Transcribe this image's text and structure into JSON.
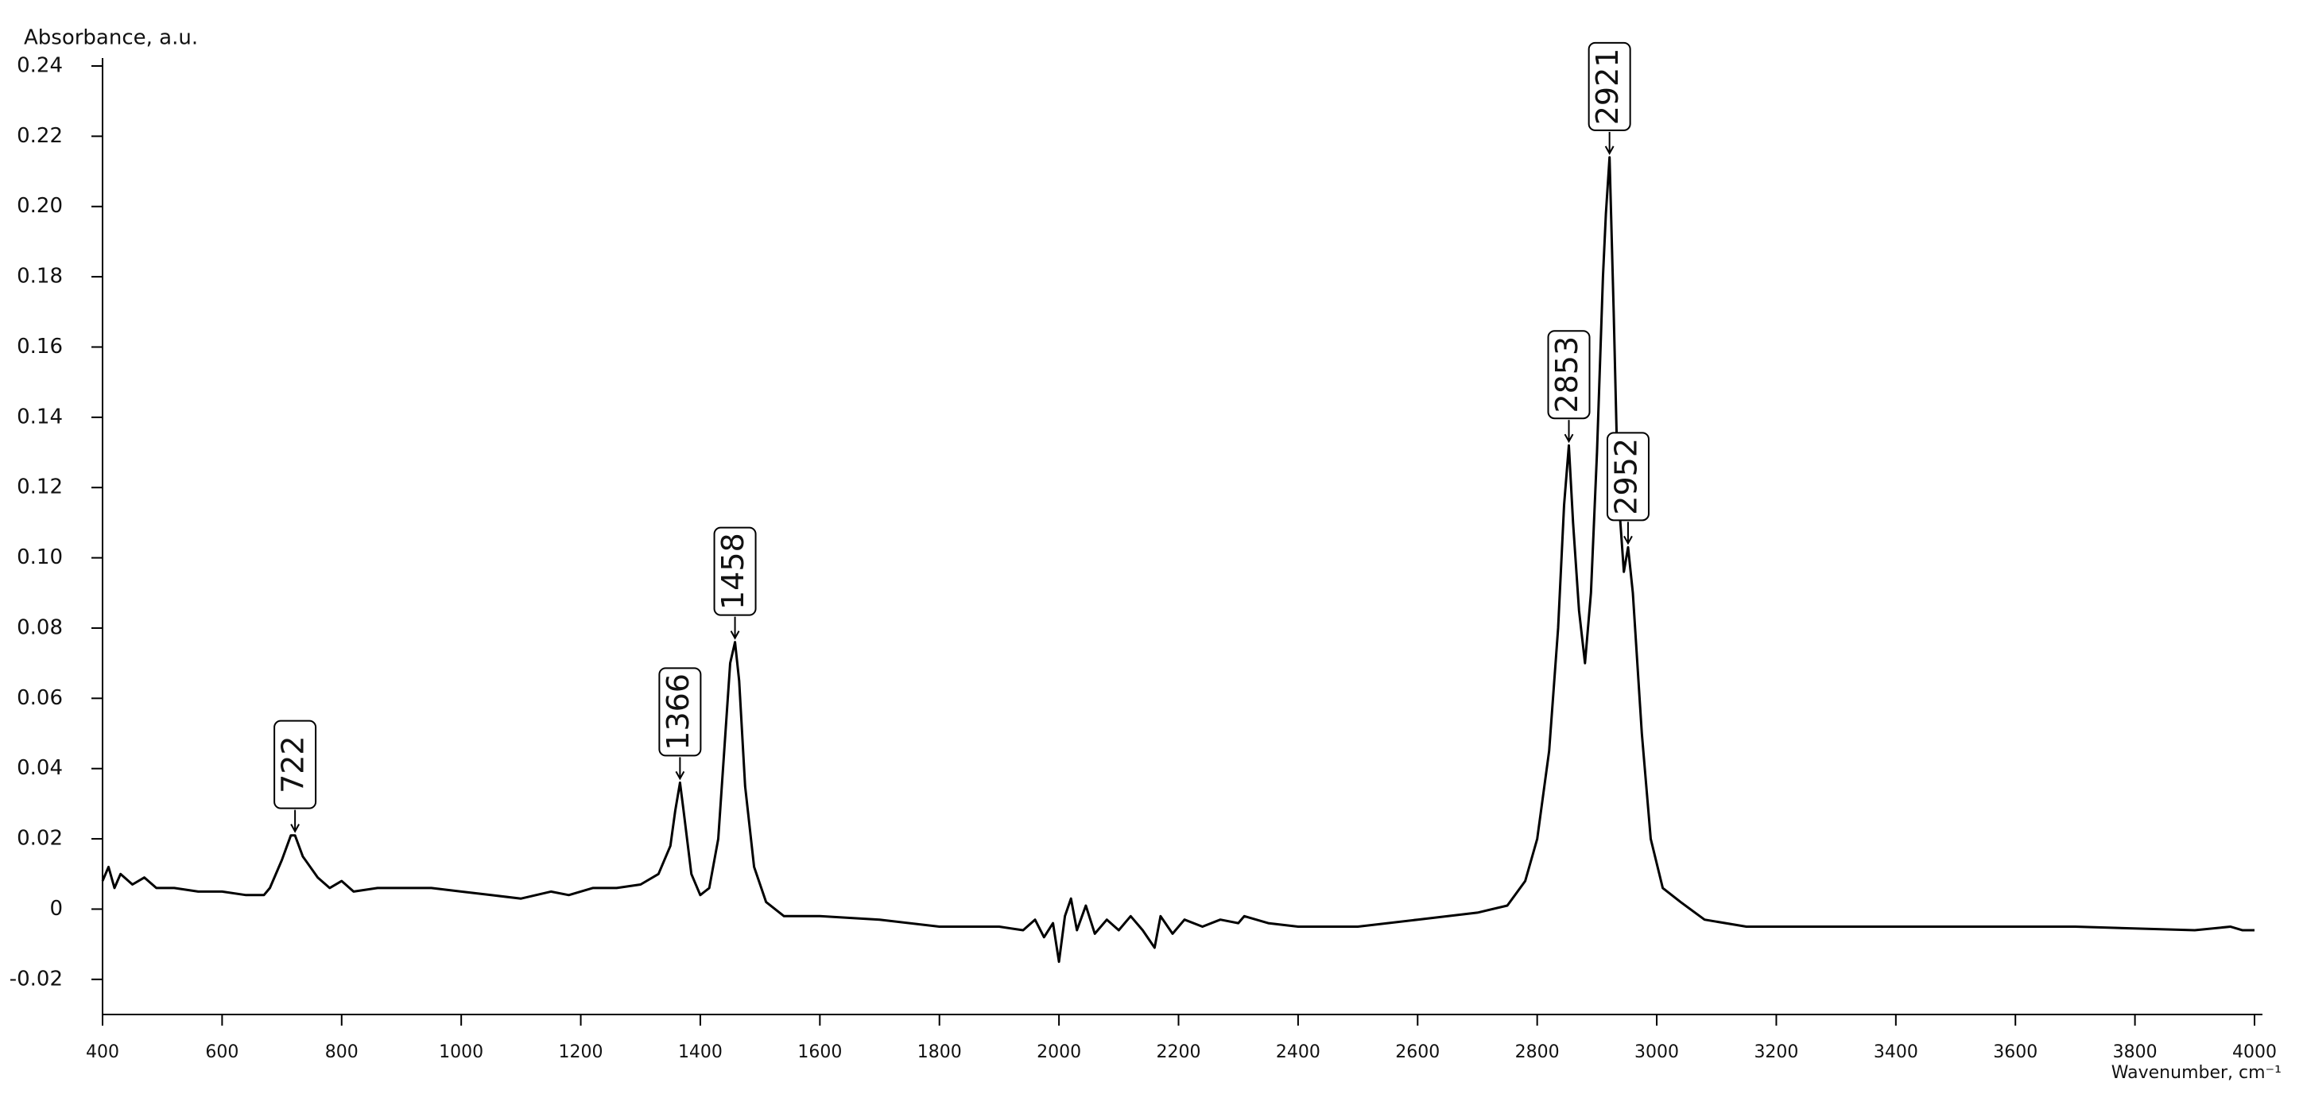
{
  "chart_data": {
    "type": "line",
    "y_label": "Absorbance, a.u.",
    "x_label": "Wavenumber, cm⁻¹",
    "xlim": [
      400,
      4000
    ],
    "xticks": [
      400,
      600,
      800,
      1000,
      1200,
      1400,
      1600,
      1800,
      2000,
      2200,
      2400,
      2600,
      2800,
      3000,
      3200,
      3400,
      3600,
      3800,
      4000
    ],
    "ylim": [
      -0.03,
      0.24
    ],
    "yticks": [
      -0.02,
      0,
      0.02,
      0.04,
      0.06,
      0.08,
      {
        "value": 0.1,
        "label": "0.10"
      },
      0.12,
      0.14,
      0.16,
      0.18,
      {
        "value": 0.2,
        "label": "0.20"
      },
      0.22,
      0.24
    ],
    "series": [
      {
        "color": "#000000",
        "x": [
          400,
          410,
          420,
          430,
          450,
          470,
          490,
          520,
          560,
          600,
          640,
          670,
          680,
          700,
          715,
          722,
          735,
          760,
          780,
          800,
          820,
          860,
          900,
          950,
          1000,
          1050,
          1100,
          1150,
          1180,
          1220,
          1260,
          1300,
          1330,
          1350,
          1358,
          1366,
          1372,
          1385,
          1400,
          1415,
          1430,
          1440,
          1450,
          1458,
          1465,
          1475,
          1490,
          1510,
          1540,
          1600,
          1700,
          1800,
          1900,
          1940,
          1960,
          1975,
          1990,
          2000,
          2010,
          2020,
          2030,
          2045,
          2060,
          2080,
          2100,
          2120,
          2140,
          2160,
          2170,
          2190,
          2210,
          2240,
          2270,
          2300,
          2310,
          2350,
          2400,
          2500,
          2600,
          2700,
          2750,
          2780,
          2800,
          2820,
          2835,
          2845,
          2853,
          2860,
          2870,
          2880,
          2890,
          2900,
          2910,
          2915,
          2921,
          2928,
          2935,
          2945,
          2952,
          2960,
          2975,
          2990,
          3010,
          3040,
          3080,
          3150,
          3300,
          3500,
          3700,
          3900,
          3960,
          3980,
          4000
        ],
        "values": [
          0.008,
          0.012,
          0.006,
          0.01,
          0.007,
          0.009,
          0.006,
          0.006,
          0.005,
          0.005,
          0.004,
          0.004,
          0.006,
          0.014,
          0.021,
          0.021,
          0.015,
          0.009,
          0.006,
          0.008,
          0.005,
          0.006,
          0.006,
          0.006,
          0.005,
          0.004,
          0.003,
          0.005,
          0.004,
          0.006,
          0.006,
          0.007,
          0.01,
          0.018,
          0.028,
          0.036,
          0.028,
          0.01,
          0.004,
          0.006,
          0.02,
          0.045,
          0.07,
          0.076,
          0.065,
          0.035,
          0.012,
          0.002,
          -0.002,
          -0.002,
          -0.003,
          -0.005,
          -0.005,
          -0.006,
          -0.003,
          -0.008,
          -0.004,
          -0.015,
          -0.002,
          0.003,
          -0.006,
          0.001,
          -0.007,
          -0.003,
          -0.006,
          -0.002,
          -0.006,
          -0.011,
          -0.002,
          -0.007,
          -0.003,
          -0.005,
          -0.003,
          -0.004,
          -0.002,
          -0.004,
          -0.005,
          -0.005,
          -0.003,
          -0.001,
          0.001,
          0.008,
          0.02,
          0.045,
          0.08,
          0.115,
          0.132,
          0.11,
          0.085,
          0.07,
          0.09,
          0.13,
          0.18,
          0.198,
          0.214,
          0.17,
          0.12,
          0.096,
          0.103,
          0.09,
          0.05,
          0.02,
          0.006,
          0.002,
          -0.003,
          -0.005,
          -0.005,
          -0.005,
          -0.005,
          -0.006,
          -0.005,
          -0.006,
          -0.006
        ]
      }
    ],
    "annotations": [
      {
        "x": 722,
        "y": 0.021
      },
      {
        "x": 1366,
        "y": 0.036
      },
      {
        "x": 1458,
        "y": 0.076
      },
      {
        "x": 2853,
        "y": 0.132
      },
      {
        "x": 2921,
        "y": 0.214
      },
      {
        "x": 2952,
        "y": 0.103
      }
    ]
  }
}
